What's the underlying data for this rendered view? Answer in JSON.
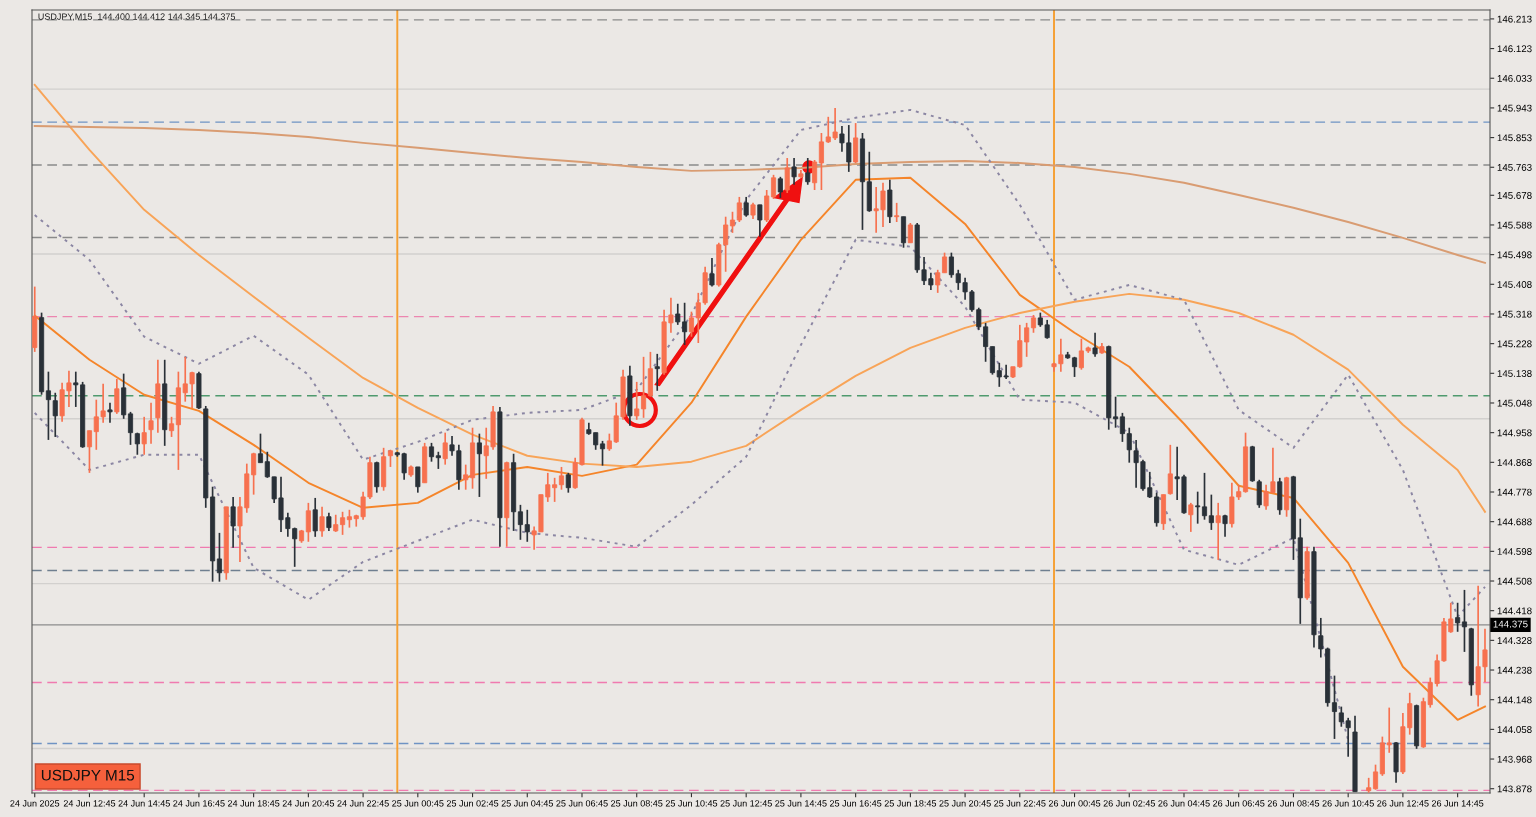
{
  "chart_data": {
    "type": "candlestick",
    "title": "USDJPY,M15  144.400 144.412 144.345 144.375",
    "annotations": [
      "USDJPY M15"
    ],
    "colors": [
      "#f7714f",
      "#2a3138",
      "#2a3138",
      "#2a3138",
      "#f7714f",
      "#f7714f",
      "#2a3138",
      "#2a3138",
      "#f7714f",
      "#f7714f",
      "#f7714f",
      "#2a3138",
      "#f7714f",
      "#2a3138",
      "#2a3138",
      "#2a3138",
      "#f7714f",
      "#f7714f",
      "#f7714f",
      "#2a3138",
      "#f7714f",
      "#f7714f",
      "#f7714f",
      "#f7714f",
      "#2a3138",
      "#2a3138",
      "#2a3138",
      "#2a3138",
      "#f7714f",
      "#2a3138",
      "#f7714f",
      "#f7714f",
      "#f7714f",
      "#2a3138",
      "#2a3138",
      "#2a3138",
      "#2a3138",
      "#2a3138",
      "#2a3138",
      "#f7714f",
      "#f7714f",
      "#2a3138",
      "#f7714f",
      "#2a3138",
      "#f7714f",
      "#f7714f",
      "#f7714f",
      "#f7714f",
      "#f7714f",
      "#f7714f",
      "#2a3138",
      "#f7714f",
      "#f7714f",
      "#2a3138",
      "#2a3138",
      "#f7714f",
      "#2a3138",
      "#f7714f",
      "#2a3138",
      "#2a3138",
      "#f7714f",
      "#2a3138",
      "#2a3138",
      "#f7714f",
      "#f7714f",
      "#2a3138",
      "#f7714f",
      "#f7714f",
      "#2a3138",
      "#f7714f",
      "#2a3138",
      "#2a3138",
      "#2a3138",
      "#f7714f",
      "#f7714f",
      "#f7714f",
      "#f7714f",
      "#f7714f",
      "#2a3138",
      "#f7714f",
      "#f7714f",
      "#2a3138",
      "#2a3138",
      "#2a3138",
      "#f7714f",
      "#f7714f",
      "#f7714f",
      "#2a3138",
      "#f7714f",
      "#f7714f",
      "#f7714f",
      "#2a3138",
      "#f7714f",
      "#f7714f",
      "#2a3138",
      "#2a3138",
      "#f7714f",
      "#f7714f",
      "#f7714f",
      "#2a3138",
      "#f7714f",
      "#f7714f",
      "#f7714f",
      "#f7714f",
      "#2a3138",
      "#f7714f",
      "#2a3138",
      "#f7714f",
      "#f7714f",
      "#2a3138",
      "#f7714f",
      "#2a3138",
      "#f7714f",
      "#2a3138",
      "#f7714f",
      "#f7714f",
      "#f7714f",
      "#f7714f",
      "#2a3138",
      "#2a3138",
      "#f7714f",
      "#2a3138",
      "#2a3138",
      "#f7714f",
      "#f7714f",
      "#2a3138",
      "#f7714f",
      "#2a3138",
      "#f7714f",
      "#2a3138",
      "#2a3138",
      "#2a3138",
      "#f7714f",
      "#f7714f",
      "#2a3138",
      "#2a3138",
      "#2a3138",
      "#2a3138",
      "#2a3138",
      "#2a3138",
      "#2a3138",
      "#2a3138",
      "#2a3138",
      "#f7714f",
      "#f7714f",
      "#f7714f",
      "#f7714f",
      "#2a3138",
      "#2a3138",
      "#f7714f",
      "#f7714f",
      "#2a3138",
      "#2a3138",
      "#f7714f",
      "#f7714f",
      "#2a3138",
      "#f7714f",
      "#2a3138",
      "#2a3138",
      "#2a3138",
      "#2a3138",
      "#2a3138",
      "#2a3138",
      "#2a3138",
      "#2a3138",
      "#f7714f",
      "#f7714f",
      "#2a3138",
      "#2a3138",
      "#f7714f",
      "#2a3138",
      "#2a3138",
      "#2a3138",
      "#f7714f",
      "#2a3138",
      "#f7714f",
      "#f7714f",
      "#f7714f",
      "#2a3138",
      "#2a3138",
      "#f7714f",
      "#f7714f",
      "#2a3138",
      "#f7714f",
      "#2a3138",
      "#2a3138",
      "#f7714f",
      "#2a3138",
      "#2a3138",
      "#2a3138",
      "#2a3138",
      "#2a3138",
      "#2a3138",
      "#2a3138",
      "#f7714f",
      "#f7714f",
      "#f7714f",
      "#f7714f",
      "#2a3138",
      "#f7714f",
      "#f7714f",
      "#2a3138",
      "#f7714f",
      "#f7714f",
      "#f7714f",
      "#f7714f",
      "#f7714f",
      "#2a3138",
      "#2a3138",
      "#2a3138",
      "#f7714f",
      "#f7714f"
    ],
    "x": [
      "2025-06-24T10:45",
      "2025-06-24T11:00",
      "2025-06-24T11:15",
      "2025-06-24T11:30",
      "2025-06-24T11:45",
      "2025-06-24T12:00",
      "2025-06-24T12:15",
      "2025-06-24T12:30",
      "2025-06-24T12:45",
      "2025-06-24T13:00",
      "2025-06-24T13:15",
      "2025-06-24T13:30",
      "2025-06-24T13:45",
      "2025-06-24T14:00",
      "2025-06-24T14:15",
      "2025-06-24T14:30",
      "2025-06-24T14:45",
      "2025-06-24T15:00",
      "2025-06-24T15:15",
      "2025-06-24T15:30",
      "2025-06-24T15:45",
      "2025-06-24T16:00",
      "2025-06-24T16:15",
      "2025-06-24T16:30",
      "2025-06-24T16:45",
      "2025-06-24T17:00",
      "2025-06-24T17:15",
      "2025-06-24T17:30",
      "2025-06-24T17:45",
      "2025-06-24T18:00",
      "2025-06-24T18:15",
      "2025-06-24T18:30",
      "2025-06-24T18:45",
      "2025-06-24T19:00",
      "2025-06-24T19:15",
      "2025-06-24T19:30",
      "2025-06-24T19:45",
      "2025-06-24T20:00",
      "2025-06-24T20:15",
      "2025-06-24T20:30",
      "2025-06-24T20:45",
      "2025-06-24T21:00",
      "2025-06-24T21:15",
      "2025-06-24T21:30",
      "2025-06-24T21:45",
      "2025-06-24T22:00",
      "2025-06-24T22:15",
      "2025-06-24T22:30",
      "2025-06-24T22:45",
      "2025-06-24T23:00",
      "2025-06-24T23:15",
      "2025-06-24T23:30",
      "2025-06-24T23:45",
      "2025-06-25T00:00",
      "2025-06-25T00:15",
      "2025-06-25T00:30",
      "2025-06-25T00:45",
      "2025-06-25T01:00",
      "2025-06-25T01:15",
      "2025-06-25T01:30",
      "2025-06-25T01:45",
      "2025-06-25T02:00",
      "2025-06-25T02:15",
      "2025-06-25T02:30",
      "2025-06-25T02:45",
      "2025-06-25T03:00",
      "2025-06-25T03:15",
      "2025-06-25T03:30",
      "2025-06-25T03:45",
      "2025-06-25T04:00",
      "2025-06-25T04:15",
      "2025-06-25T04:30",
      "2025-06-25T04:45",
      "2025-06-25T05:00",
      "2025-06-25T05:15",
      "2025-06-25T05:30",
      "2025-06-25T05:45",
      "2025-06-25T06:00",
      "2025-06-25T06:15",
      "2025-06-25T06:30",
      "2025-06-25T06:45",
      "2025-06-25T07:00",
      "2025-06-25T07:15",
      "2025-06-25T07:30",
      "2025-06-25T07:45",
      "2025-06-25T08:00",
      "2025-06-25T08:15",
      "2025-06-25T08:30",
      "2025-06-25T08:45",
      "2025-06-25T09:00",
      "2025-06-25T09:15",
      "2025-06-25T09:30",
      "2025-06-25T09:45",
      "2025-06-25T10:00",
      "2025-06-25T10:15",
      "2025-06-25T10:30",
      "2025-06-25T10:45",
      "2025-06-25T11:00",
      "2025-06-25T11:15",
      "2025-06-25T11:30",
      "2025-06-25T11:45",
      "2025-06-25T12:00",
      "2025-06-25T12:15",
      "2025-06-25T12:30",
      "2025-06-25T12:45",
      "2025-06-25T13:00",
      "2025-06-25T13:15",
      "2025-06-25T13:30",
      "2025-06-25T13:45",
      "2025-06-25T14:00",
      "2025-06-25T14:15",
      "2025-06-25T14:30",
      "2025-06-25T14:45",
      "2025-06-25T15:00",
      "2025-06-25T15:15",
      "2025-06-25T15:30",
      "2025-06-25T15:45",
      "2025-06-25T16:00",
      "2025-06-25T16:15",
      "2025-06-25T16:30",
      "2025-06-25T16:45",
      "2025-06-25T17:00",
      "2025-06-25T17:15",
      "2025-06-25T17:30",
      "2025-06-25T17:45",
      "2025-06-25T18:00",
      "2025-06-25T18:15",
      "2025-06-25T18:30",
      "2025-06-25T18:45",
      "2025-06-25T19:00",
      "2025-06-25T19:15",
      "2025-06-25T19:30",
      "2025-06-25T19:45",
      "2025-06-25T20:00",
      "2025-06-25T20:15",
      "2025-06-25T20:30",
      "2025-06-25T20:45",
      "2025-06-25T21:00",
      "2025-06-25T21:15",
      "2025-06-25T21:30",
      "2025-06-25T21:45",
      "2025-06-25T22:00",
      "2025-06-25T22:15",
      "2025-06-25T22:30",
      "2025-06-25T22:45",
      "2025-06-25T23:00",
      "2025-06-25T23:15",
      "2025-06-25T23:30",
      "2025-06-25T23:45",
      "2025-06-26T00:00",
      "2025-06-26T00:15",
      "2025-06-26T00:30",
      "2025-06-26T00:45",
      "2025-06-26T01:00",
      "2025-06-26T01:15",
      "2025-06-26T01:30",
      "2025-06-26T01:45",
      "2025-06-26T02:00",
      "2025-06-26T02:15",
      "2025-06-26T02:30",
      "2025-06-26T02:45",
      "2025-06-26T03:00",
      "2025-06-26T03:15",
      "2025-06-26T03:30",
      "2025-06-26T03:45",
      "2025-06-26T04:00",
      "2025-06-26T04:15",
      "2025-06-26T04:30",
      "2025-06-26T04:45",
      "2025-06-26T05:00",
      "2025-06-26T05:15",
      "2025-06-26T05:30",
      "2025-06-26T05:45",
      "2025-06-26T06:00",
      "2025-06-26T06:15",
      "2025-06-26T06:30",
      "2025-06-26T06:45",
      "2025-06-26T07:00",
      "2025-06-26T07:15",
      "2025-06-26T07:30",
      "2025-06-26T07:45",
      "2025-06-26T08:00",
      "2025-06-26T08:15",
      "2025-06-26T08:30",
      "2025-06-26T08:45",
      "2025-06-26T09:00",
      "2025-06-26T09:15",
      "2025-06-26T09:30",
      "2025-06-26T09:45",
      "2025-06-26T10:00",
      "2025-06-26T10:15",
      "2025-06-26T10:30",
      "2025-06-26T10:45",
      "2025-06-26T11:00",
      "2025-06-26T11:30",
      "2025-06-26T11:45",
      "2025-06-26T12:00",
      "2025-06-26T12:15",
      "2025-06-26T12:30",
      "2025-06-26T12:45",
      "2025-06-26T13:00",
      "2025-06-26T13:15",
      "2025-06-26T13:30",
      "2025-06-26T13:45",
      "2025-06-26T14:00",
      "2025-06-26T14:15",
      "2025-06-26T14:30",
      "2025-06-26T14:45",
      "2025-06-26T15:00",
      "2025-06-26T15:15",
      "2025-06-26T15:30",
      "2025-06-26T15:45"
    ],
    "ohlc": [
      [
        145.216,
        145.401,
        145.203,
        145.31
      ],
      [
        145.307,
        145.322,
        145.073,
        145.082
      ],
      [
        145.085,
        145.143,
        144.936,
        145.058
      ],
      [
        145.055,
        145.079,
        144.945,
        145.009
      ],
      [
        145.009,
        145.109,
        144.991,
        145.088
      ],
      [
        145.085,
        145.146,
        145.036,
        145.109
      ],
      [
        145.109,
        145.143,
        145.036,
        145.103
      ],
      [
        145.103,
        145.112,
        144.912,
        144.915
      ],
      [
        144.915,
        144.964,
        144.836,
        144.964
      ],
      [
        144.961,
        145.058,
        144.906,
        145.006
      ],
      [
        145.006,
        145.106,
        144.988,
        145.024
      ],
      [
        145.027,
        145.049,
        144.988,
        145.021
      ],
      [
        145.021,
        145.121,
        145.015,
        145.091
      ],
      [
        145.094,
        145.137,
        145.0,
        145.012
      ],
      [
        145.015,
        145.021,
        144.921,
        144.958
      ],
      [
        144.955,
        144.958,
        144.891,
        144.924
      ],
      [
        144.924,
        145.006,
        144.891,
        144.958
      ],
      [
        144.967,
        145.049,
        144.924,
        144.994
      ],
      [
        145.003,
        145.179,
        144.958,
        145.106
      ],
      [
        145.106,
        145.179,
        144.918,
        144.967
      ],
      [
        144.964,
        145.006,
        144.945,
        144.985
      ],
      [
        144.982,
        145.143,
        144.845,
        145.094
      ],
      [
        145.079,
        145.188,
        145.052,
        145.106
      ],
      [
        145.106,
        145.143,
        145.033,
        145.14
      ],
      [
        145.137,
        145.143,
        145.03,
        145.033
      ],
      [
        145.03,
        145.039,
        144.73,
        144.76
      ],
      [
        144.763,
        144.794,
        144.506,
        144.569
      ],
      [
        144.575,
        144.654,
        144.506,
        144.533
      ],
      [
        144.533,
        144.733,
        144.512,
        144.733
      ],
      [
        144.733,
        144.763,
        144.609,
        144.675
      ],
      [
        144.675,
        144.763,
        144.566,
        144.733
      ],
      [
        144.73,
        144.864,
        144.715,
        144.833
      ],
      [
        144.83,
        144.897,
        144.77,
        144.894
      ],
      [
        144.894,
        144.955,
        144.867,
        144.867
      ],
      [
        144.87,
        144.9,
        144.821,
        144.824
      ],
      [
        144.824,
        144.824,
        144.745,
        144.757
      ],
      [
        144.76,
        144.824,
        144.657,
        144.694
      ],
      [
        144.7,
        144.715,
        144.642,
        144.667
      ],
      [
        144.667,
        144.67,
        144.551,
        144.636
      ],
      [
        144.63,
        144.663,
        144.624,
        144.66
      ],
      [
        144.657,
        144.745,
        144.627,
        144.721
      ],
      [
        144.724,
        144.76,
        144.642,
        144.66
      ],
      [
        144.66,
        144.733,
        144.642,
        144.703
      ],
      [
        144.703,
        144.715,
        144.66,
        144.67
      ],
      [
        144.66,
        144.709,
        144.657,
        144.679
      ],
      [
        144.679,
        144.718,
        144.648,
        144.7
      ],
      [
        144.694,
        144.724,
        144.67,
        144.703
      ],
      [
        144.697,
        144.709,
        144.673,
        144.706
      ],
      [
        144.703,
        144.779,
        144.694,
        144.763
      ],
      [
        144.763,
        144.885,
        144.757,
        144.867
      ],
      [
        144.867,
        144.87,
        144.776,
        144.794
      ],
      [
        144.794,
        144.912,
        144.782,
        144.885
      ],
      [
        144.888,
        144.906,
        144.854,
        144.903
      ],
      [
        144.897,
        144.9,
        144.885,
        144.891
      ],
      [
        144.894,
        144.897,
        144.815,
        144.836
      ],
      [
        144.83,
        144.858,
        144.824,
        144.854
      ],
      [
        144.854,
        144.854,
        144.776,
        144.794
      ],
      [
        144.806,
        144.927,
        144.806,
        144.915
      ],
      [
        144.915,
        144.927,
        144.87,
        144.885
      ],
      [
        144.888,
        144.9,
        144.848,
        144.882
      ],
      [
        144.879,
        144.958,
        144.861,
        144.927
      ],
      [
        144.921,
        144.948,
        144.888,
        144.903
      ],
      [
        144.903,
        144.921,
        144.785,
        144.815
      ],
      [
        144.815,
        144.861,
        144.785,
        144.83
      ],
      [
        144.821,
        144.973,
        144.788,
        144.927
      ],
      [
        144.927,
        144.955,
        144.763,
        144.894
      ],
      [
        144.888,
        144.973,
        144.818,
        144.918
      ],
      [
        144.915,
        145.039,
        144.906,
        145.021
      ],
      [
        145.021,
        145.036,
        144.612,
        144.7
      ],
      [
        144.7,
        144.87,
        144.612,
        144.867
      ],
      [
        144.867,
        144.894,
        144.66,
        144.718
      ],
      [
        144.718,
        144.739,
        144.633,
        144.679
      ],
      [
        144.679,
        144.724,
        144.627,
        144.657
      ],
      [
        144.648,
        144.673,
        144.603,
        144.66
      ],
      [
        144.657,
        144.77,
        144.657,
        144.77
      ],
      [
        144.763,
        144.836,
        144.748,
        144.8
      ],
      [
        144.791,
        144.821,
        144.748,
        144.8
      ],
      [
        144.8,
        144.854,
        144.785,
        144.827
      ],
      [
        144.83,
        144.836,
        144.776,
        144.791
      ],
      [
        144.791,
        144.882,
        144.788,
        144.867
      ],
      [
        144.861,
        145.003,
        144.858,
        144.997
      ],
      [
        144.967,
        144.988,
        144.952,
        144.955
      ],
      [
        144.958,
        144.958,
        144.906,
        144.921
      ],
      [
        144.924,
        144.933,
        144.858,
        144.909
      ],
      [
        144.909,
        144.955,
        144.903,
        144.933
      ],
      [
        144.93,
        145.049,
        144.927,
        145.009
      ],
      [
        145.006,
        145.149,
        144.997,
        145.127
      ],
      [
        145.13,
        145.161,
        144.979,
        145.009
      ],
      [
        145.009,
        145.112,
        144.997,
        145.03
      ],
      [
        145.03,
        145.188,
        145.003,
        145.07
      ],
      [
        145.07,
        145.203,
        145.067,
        145.152
      ],
      [
        145.158,
        145.197,
        145.085,
        145.152
      ],
      [
        145.14,
        145.331,
        145.134,
        145.294
      ],
      [
        145.291,
        145.367,
        145.261,
        145.315
      ],
      [
        145.318,
        145.349,
        145.285,
        145.294
      ],
      [
        145.294,
        145.352,
        145.224,
        145.264
      ],
      [
        145.264,
        145.325,
        145.249,
        145.306
      ],
      [
        145.306,
        145.382,
        145.23,
        145.352
      ],
      [
        145.352,
        145.461,
        145.346,
        145.443
      ],
      [
        145.44,
        145.488,
        145.401,
        145.406
      ],
      [
        145.406,
        145.534,
        145.401,
        145.528
      ],
      [
        145.528,
        145.613,
        145.446,
        145.588
      ],
      [
        145.585,
        145.628,
        145.564,
        145.603
      ],
      [
        145.603,
        145.673,
        145.597,
        145.655
      ],
      [
        145.655,
        145.673,
        145.613,
        145.618
      ],
      [
        145.618,
        145.655,
        145.606,
        145.649
      ],
      [
        145.649,
        145.649,
        145.552,
        145.603
      ],
      [
        145.603,
        145.694,
        145.597,
        145.676
      ],
      [
        145.673,
        145.74,
        145.667,
        145.731
      ],
      [
        145.728,
        145.734,
        145.67,
        145.688
      ],
      [
        145.694,
        145.791,
        145.685,
        145.761
      ],
      [
        145.764,
        145.791,
        145.71,
        145.734
      ],
      [
        145.734,
        145.755,
        145.731,
        145.743
      ],
      [
        145.746,
        145.791,
        145.71,
        145.719
      ],
      [
        145.716,
        145.785,
        145.694,
        145.779
      ],
      [
        145.776,
        145.867,
        145.694,
        145.84
      ],
      [
        145.84,
        145.916,
        145.837,
        145.855
      ],
      [
        145.852,
        145.943,
        145.846,
        145.87
      ],
      [
        145.864,
        145.888,
        145.81,
        145.837
      ],
      [
        145.837,
        145.891,
        145.749,
        145.779
      ],
      [
        145.779,
        145.897,
        145.776,
        145.852
      ],
      [
        145.849,
        145.867,
        145.573,
        145.719
      ],
      [
        145.719,
        145.81,
        145.628,
        145.631
      ],
      [
        145.631,
        145.703,
        145.564,
        145.637
      ],
      [
        145.634,
        145.716,
        145.582,
        145.691
      ],
      [
        145.694,
        145.725,
        145.594,
        145.613
      ],
      [
        145.613,
        145.655,
        145.597,
        145.616
      ],
      [
        145.613,
        145.613,
        145.519,
        145.534
      ],
      [
        145.534,
        145.594,
        145.534,
        145.588
      ],
      [
        145.588,
        145.594,
        145.443,
        145.452
      ],
      [
        145.452,
        145.491,
        145.406,
        145.419
      ],
      [
        145.425,
        145.443,
        145.391,
        145.406
      ],
      [
        145.406,
        145.452,
        145.382,
        145.443
      ],
      [
        145.443,
        145.504,
        145.443,
        145.491
      ],
      [
        145.491,
        145.504,
        145.428,
        145.437
      ],
      [
        145.44,
        145.452,
        145.391,
        145.413
      ],
      [
        145.413,
        145.428,
        145.361,
        145.385
      ],
      [
        145.385,
        145.391,
        145.325,
        145.331
      ],
      [
        145.331,
        145.337,
        145.27,
        145.279
      ],
      [
        145.279,
        145.291,
        145.173,
        145.219
      ],
      [
        145.219,
        145.219,
        145.134,
        145.14
      ],
      [
        145.146,
        145.17,
        145.097,
        145.127
      ],
      [
        145.13,
        145.164,
        145.121,
        145.127
      ],
      [
        145.127,
        145.158,
        145.124,
        145.158
      ],
      [
        145.158,
        145.285,
        145.155,
        145.237
      ],
      [
        145.233,
        145.291,
        145.188,
        145.276
      ],
      [
        145.276,
        145.315,
        145.261,
        145.306
      ],
      [
        145.306,
        145.322,
        145.279,
        145.285
      ],
      [
        145.285,
        145.3,
        145.243,
        145.246
      ],
      [
        145.158,
        145.17,
        145.143,
        145.167
      ],
      [
        145.167,
        145.243,
        145.143,
        145.194
      ],
      [
        145.194,
        145.203,
        145.182,
        145.185
      ],
      [
        145.185,
        145.188,
        145.127,
        145.158
      ],
      [
        145.155,
        145.243,
        145.149,
        145.206
      ],
      [
        145.206,
        145.219,
        145.2,
        145.215
      ],
      [
        145.215,
        145.261,
        145.188,
        145.197
      ],
      [
        145.2,
        145.23,
        145.197,
        145.219
      ],
      [
        145.219,
        145.222,
        144.967,
        145.003
      ],
      [
        145.006,
        145.067,
        144.973,
        145.0
      ],
      [
        145.006,
        145.018,
        144.93,
        144.955
      ],
      [
        144.955,
        144.973,
        144.867,
        144.906
      ],
      [
        144.903,
        144.936,
        144.791,
        144.867
      ],
      [
        144.87,
        144.876,
        144.782,
        144.788
      ],
      [
        144.791,
        144.839,
        144.76,
        144.763
      ],
      [
        144.763,
        144.776,
        144.673,
        144.685
      ],
      [
        144.682,
        144.77,
        144.663,
        144.77
      ],
      [
        144.773,
        144.921,
        144.77,
        144.833
      ],
      [
        144.824,
        144.915,
        144.754,
        144.818
      ],
      [
        144.824,
        144.83,
        144.712,
        144.715
      ],
      [
        144.709,
        144.745,
        144.657,
        144.739
      ],
      [
        144.736,
        144.779,
        144.682,
        144.733
      ],
      [
        144.733,
        144.836,
        144.694,
        144.706
      ],
      [
        144.706,
        144.77,
        144.663,
        144.685
      ],
      [
        144.685,
        144.745,
        144.572,
        144.706
      ],
      [
        144.706,
        144.709,
        144.642,
        144.682
      ],
      [
        144.682,
        144.806,
        144.67,
        144.763
      ],
      [
        144.763,
        144.8,
        144.754,
        144.779
      ],
      [
        144.779,
        144.958,
        144.776,
        144.915
      ],
      [
        144.915,
        144.918,
        144.809,
        144.812
      ],
      [
        144.809,
        144.815,
        144.73,
        144.739
      ],
      [
        144.736,
        144.8,
        144.724,
        144.779
      ],
      [
        144.776,
        144.912,
        144.776,
        144.809
      ],
      [
        144.809,
        144.821,
        144.709,
        144.724
      ],
      [
        144.724,
        144.824,
        144.703,
        144.821
      ],
      [
        144.824,
        144.827,
        144.572,
        144.636
      ],
      [
        144.639,
        144.697,
        144.378,
        144.457
      ],
      [
        144.457,
        144.612,
        144.451,
        144.597
      ],
      [
        144.597,
        144.612,
        144.306,
        144.345
      ],
      [
        144.342,
        144.396,
        144.276,
        144.302
      ],
      [
        144.302,
        144.306,
        144.127,
        144.139
      ],
      [
        144.139,
        144.221,
        144.029,
        144.112
      ],
      [
        144.108,
        144.127,
        144.066,
        144.081
      ],
      [
        144.084,
        144.093,
        143.975,
        144.063
      ],
      [
        144.05,
        144.099,
        143.869,
        143.869
      ],
      [
        143.872,
        143.911,
        143.866,
        143.881
      ],
      [
        143.878,
        143.951,
        143.875,
        143.929
      ],
      [
        143.923,
        144.036,
        143.917,
        144.017
      ],
      [
        144.011,
        144.124,
        143.987,
        144.017
      ],
      [
        144.017,
        144.02,
        143.896,
        143.929
      ],
      [
        143.929,
        144.108,
        143.923,
        144.066
      ],
      [
        144.063,
        144.169,
        144.042,
        144.136
      ],
      [
        144.13,
        144.133,
        143.999,
        144.008
      ],
      [
        144.005,
        144.154,
        144.002,
        144.142
      ],
      [
        144.133,
        144.215,
        144.124,
        144.2
      ],
      [
        144.197,
        144.285,
        144.188,
        144.266
      ],
      [
        144.266,
        144.396,
        144.263,
        144.384
      ],
      [
        144.354,
        144.442,
        144.351,
        144.393
      ],
      [
        144.397,
        144.442,
        144.354,
        144.381
      ],
      [
        144.384,
        144.481,
        144.293,
        144.369
      ],
      [
        144.363,
        144.366,
        144.16,
        144.193
      ],
      [
        144.163,
        144.494,
        144.127,
        144.248
      ],
      [
        144.248,
        144.363,
        144.202,
        144.299
      ]
    ],
    "series": [
      {
        "type": "line",
        "color": "#f5852a",
        "line_style": "solid",
        "x": [
          "2025-06-24T10:45",
          "2025-06-24T12:45",
          "2025-06-24T14:45",
          "2025-06-24T16:45",
          "2025-06-24T18:45",
          "2025-06-24T20:45",
          "2025-06-24T22:45",
          "2025-06-25T00:45",
          "2025-06-25T02:45",
          "2025-06-25T04:45",
          "2025-06-25T06:45",
          "2025-06-25T08:45",
          "2025-06-25T10:45",
          "2025-06-25T12:45",
          "2025-06-25T14:45",
          "2025-06-25T16:45",
          "2025-06-25T18:45",
          "2025-06-25T20:45",
          "2025-06-25T22:45",
          "2025-06-26T00:45",
          "2025-06-26T02:45",
          "2025-06-26T04:45",
          "2025-06-26T06:45",
          "2025-06-26T08:45",
          "2025-06-26T10:45",
          "2025-06-26T12:45",
          "2025-06-26T14:45",
          "2025-06-26T15:45"
        ],
        "values": [
          145.313,
          145.179,
          145.073,
          145.024,
          144.921,
          144.806,
          144.73,
          144.745,
          144.83,
          144.854,
          144.827,
          144.861,
          145.049,
          145.31,
          145.543,
          145.725,
          145.731,
          145.591,
          145.376,
          145.261,
          145.158,
          144.985,
          144.797,
          144.76,
          144.563,
          144.248,
          144.087,
          144.127
        ]
      },
      {
        "type": "line",
        "color": "#f8a458",
        "line_style": "solid",
        "x": [
          "2025-06-24T10:45",
          "2025-06-24T12:45",
          "2025-06-24T14:45",
          "2025-06-24T16:45",
          "2025-06-24T18:45",
          "2025-06-24T20:45",
          "2025-06-24T22:45",
          "2025-06-25T00:45",
          "2025-06-25T02:45",
          "2025-06-25T04:45",
          "2025-06-25T06:45",
          "2025-06-25T08:45",
          "2025-06-25T10:45",
          "2025-06-25T12:45",
          "2025-06-25T14:45",
          "2025-06-25T16:45",
          "2025-06-25T18:45",
          "2025-06-25T20:45",
          "2025-06-25T22:45",
          "2025-06-26T00:45",
          "2025-06-26T02:45",
          "2025-06-26T04:45",
          "2025-06-26T06:45",
          "2025-06-26T08:45",
          "2025-06-26T10:45",
          "2025-06-26T12:45",
          "2025-06-26T14:45",
          "2025-06-26T15:45"
        ],
        "values": [
          146.013,
          145.816,
          145.634,
          145.497,
          145.37,
          145.246,
          145.124,
          145.033,
          144.952,
          144.888,
          144.864,
          144.854,
          144.87,
          144.918,
          145.027,
          145.13,
          145.215,
          145.276,
          145.321,
          145.355,
          145.379,
          145.361,
          145.321,
          145.255,
          145.149,
          144.982,
          144.845,
          144.718
        ]
      },
      {
        "type": "line",
        "color": "#d99c72",
        "line_style": "solid",
        "x": [
          "2025-06-24T10:45",
          "2025-06-24T12:45",
          "2025-06-24T14:45",
          "2025-06-24T16:45",
          "2025-06-24T18:45",
          "2025-06-24T20:45",
          "2025-06-24T22:45",
          "2025-06-25T00:45",
          "2025-06-25T02:45",
          "2025-06-25T04:45",
          "2025-06-25T06:45",
          "2025-06-25T08:45",
          "2025-06-25T10:45",
          "2025-06-25T12:45",
          "2025-06-25T14:45",
          "2025-06-25T16:45",
          "2025-06-25T18:45",
          "2025-06-25T20:45",
          "2025-06-25T22:45",
          "2025-06-26T00:45",
          "2025-06-26T02:45",
          "2025-06-26T04:45",
          "2025-06-26T06:45",
          "2025-06-26T08:45",
          "2025-06-26T10:45",
          "2025-06-26T12:45",
          "2025-06-26T14:45",
          "2025-06-26T15:45"
        ],
        "values": [
          145.888,
          145.885,
          145.882,
          145.876,
          145.867,
          145.855,
          145.837,
          145.822,
          145.806,
          145.791,
          145.779,
          145.764,
          145.752,
          145.755,
          145.761,
          145.773,
          145.779,
          145.782,
          145.776,
          145.764,
          145.743,
          145.716,
          145.679,
          145.64,
          145.597,
          145.549,
          145.497,
          145.473
        ]
      },
      {
        "type": "line",
        "color": "#8b86a3",
        "line_style": "dotted",
        "x": [
          "2025-06-24T10:45",
          "2025-06-24T12:45",
          "2025-06-24T14:45",
          "2025-06-24T16:45",
          "2025-06-24T18:45",
          "2025-06-24T20:45",
          "2025-06-24T22:45",
          "2025-06-25T00:45",
          "2025-06-25T02:45",
          "2025-06-25T04:45",
          "2025-06-25T06:45",
          "2025-06-25T08:45",
          "2025-06-25T10:45",
          "2025-06-25T12:45",
          "2025-06-25T14:45",
          "2025-06-25T16:45",
          "2025-06-25T18:45",
          "2025-06-25T20:45",
          "2025-06-25T22:45",
          "2025-06-26T00:45",
          "2025-06-26T02:45",
          "2025-06-26T04:45",
          "2025-06-26T06:45",
          "2025-06-26T08:45",
          "2025-06-26T10:45",
          "2025-06-26T12:45",
          "2025-06-26T14:45",
          "2025-06-26T15:45"
        ],
        "values": [
          145.618,
          145.482,
          145.249,
          145.167,
          145.252,
          145.134,
          144.876,
          144.93,
          144.997,
          145.018,
          145.027,
          145.088,
          145.315,
          145.664,
          145.876,
          145.913,
          145.937,
          145.891,
          145.649,
          145.361,
          145.406,
          145.361,
          145.027,
          144.912,
          145.134,
          144.845,
          144.4,
          144.49
        ]
      },
      {
        "type": "line",
        "color": "#8b86a3",
        "line_style": "dotted",
        "x": [
          "2025-06-24T10:45",
          "2025-06-24T12:45",
          "2025-06-24T14:45",
          "2025-06-24T16:45",
          "2025-06-24T18:45",
          "2025-06-24T20:45",
          "2025-06-24T22:45",
          "2025-06-25T00:45",
          "2025-06-25T02:45",
          "2025-06-25T04:45",
          "2025-06-25T06:45",
          "2025-06-25T08:45",
          "2025-06-25T10:45",
          "2025-06-25T12:45",
          "2025-06-25T14:45",
          "2025-06-25T16:45",
          "2025-06-25T18:45",
          "2025-06-25T20:45",
          "2025-06-25T22:45",
          "2025-06-26T00:45",
          "2025-06-26T02:45",
          "2025-06-26T04:45",
          "2025-06-26T06:45",
          "2025-06-26T08:45",
          "2025-06-26T10:45"
        ],
        "values": [
          145.018,
          144.845,
          144.891,
          144.891,
          144.548,
          144.451,
          144.566,
          144.63,
          144.694,
          144.654,
          144.639,
          144.612,
          144.739,
          144.885,
          145.224,
          145.543,
          145.522,
          145.34,
          145.058,
          145.049,
          144.958,
          144.603,
          144.557,
          144.639,
          144.026
        ]
      }
    ],
    "ref_lines": [
      {
        "axis": "y",
        "value": 146.21,
        "color": "#8a8a8a",
        "line_style": "dashed"
      },
      {
        "axis": "y",
        "value": 146.0,
        "color": "#d2d0ce",
        "line_style": "solid"
      },
      {
        "axis": "y",
        "value": 145.9,
        "color": "#6f93c4",
        "line_style": "dashed"
      },
      {
        "axis": "y",
        "value": 145.77,
        "color": "#8a8a8a",
        "line_style": "dashed"
      },
      {
        "axis": "y",
        "value": 145.55,
        "color": "#8a8a8a",
        "line_style": "dashed"
      },
      {
        "axis": "y",
        "value": 145.5,
        "color": "#d2d0ce",
        "line_style": "solid"
      },
      {
        "axis": "y",
        "value": 145.31,
        "color": "#ec86b0",
        "line_style": "dashed"
      },
      {
        "axis": "y",
        "value": 145.07,
        "color": "#4f9a6e",
        "line_style": "dashed"
      },
      {
        "axis": "y",
        "value": 145.0,
        "color": "#d2d0ce",
        "line_style": "solid"
      },
      {
        "axis": "y",
        "value": 144.61,
        "color": "#f07ab0",
        "line_style": "dashed"
      },
      {
        "axis": "y",
        "value": 144.54,
        "color": "#6f7f90",
        "line_style": "dashed"
      },
      {
        "axis": "y",
        "value": 144.5,
        "color": "#d2d0ce",
        "line_style": "solid"
      },
      {
        "axis": "y",
        "value": 144.375,
        "color": "#8c8c8c",
        "line_style": "solid",
        "label": "144.375"
      },
      {
        "axis": "y",
        "value": 144.2,
        "color": "#f07ab0",
        "line_style": "dashed"
      },
      {
        "axis": "y",
        "value": 144.015,
        "color": "#6f93c4",
        "line_style": "dashed"
      },
      {
        "axis": "y",
        "value": 144.0,
        "color": "#d2d0ce",
        "line_style": "solid"
      },
      {
        "axis": "y",
        "value": 143.873,
        "color": "#f07ab0",
        "line_style": "dashed"
      },
      {
        "axis": "x",
        "value": "2025-06-25T00:00",
        "color": "#f5a033",
        "line_style": "solid"
      },
      {
        "axis": "x",
        "value": "2025-06-26T00:00",
        "color": "#f5a033",
        "line_style": "solid"
      }
    ],
    "xlim": [
      "2025-06-24T10:39",
      "2025-06-26T15:56"
    ],
    "xticks": [
      {
        "value": "2025-06-24T10:45",
        "label": "24 Jun 2025"
      },
      {
        "value": "2025-06-24T12:45",
        "label": "24 Jun 12:45"
      },
      {
        "value": "2025-06-24T14:45",
        "label": "24 Jun 14:45"
      },
      {
        "value": "2025-06-24T16:45",
        "label": "24 Jun 16:45"
      },
      {
        "value": "2025-06-24T18:45",
        "label": "24 Jun 18:45"
      },
      {
        "value": "2025-06-24T20:45",
        "label": "24 Jun 20:45"
      },
      {
        "value": "2025-06-24T22:45",
        "label": "24 Jun 22:45"
      },
      {
        "value": "2025-06-25T00:45",
        "label": "25 Jun 00:45"
      },
      {
        "value": "2025-06-25T02:45",
        "label": "25 Jun 02:45"
      },
      {
        "value": "2025-06-25T04:45",
        "label": "25 Jun 04:45"
      },
      {
        "value": "2025-06-25T06:45",
        "label": "25 Jun 06:45"
      },
      {
        "value": "2025-06-25T08:45",
        "label": "25 Jun 08:45"
      },
      {
        "value": "2025-06-25T10:45",
        "label": "25 Jun 10:45"
      },
      {
        "value": "2025-06-25T12:45",
        "label": "25 Jun 12:45"
      },
      {
        "value": "2025-06-25T14:45",
        "label": "25 Jun 14:45"
      },
      {
        "value": "2025-06-25T16:45",
        "label": "25 Jun 16:45"
      },
      {
        "value": "2025-06-25T18:45",
        "label": "25 Jun 18:45"
      },
      {
        "value": "2025-06-25T20:45",
        "label": "25 Jun 20:45"
      },
      {
        "value": "2025-06-25T22:45",
        "label": "25 Jun 22:45"
      },
      {
        "value": "2025-06-26T00:45",
        "label": "26 Jun 00:45"
      },
      {
        "value": "2025-06-26T02:45",
        "label": "26 Jun 02:45"
      },
      {
        "value": "2025-06-26T04:45",
        "label": "26 Jun 04:45"
      },
      {
        "value": "2025-06-26T06:45",
        "label": "26 Jun 06:45"
      },
      {
        "value": "2025-06-26T08:45",
        "label": "26 Jun 08:45"
      },
      {
        "value": "2025-06-26T10:45",
        "label": "26 Jun 10:45"
      },
      {
        "value": "2025-06-26T12:45",
        "label": "26 Jun 12:45"
      },
      {
        "value": "2025-06-26T14:45",
        "label": "26 Jun 14:45"
      }
    ],
    "ylim": [
      143.865,
      146.24
    ],
    "yticks": [
      143.878,
      143.968,
      144.058,
      144.148,
      144.238,
      144.328,
      144.418,
      144.508,
      144.598,
      144.688,
      144.778,
      144.868,
      144.958,
      145.048,
      145.138,
      145.228,
      145.318,
      145.408,
      145.498,
      145.588,
      145.678,
      145.763,
      145.853,
      145.943,
      146.033,
      146.123,
      146.213
    ]
  }
}
